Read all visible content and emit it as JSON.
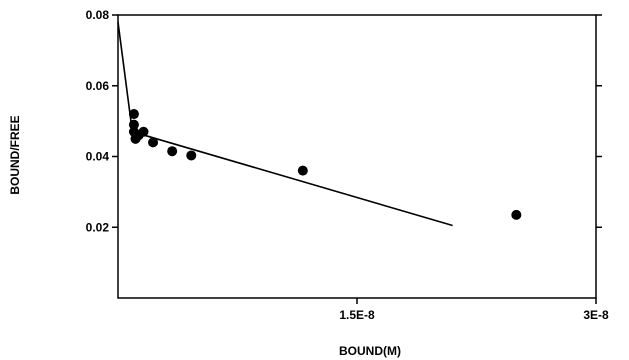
{
  "chart_data": {
    "type": "scatter",
    "title": "",
    "xlabel": "BOUND(M)",
    "ylabel": "BOUND/FREE",
    "xlim": [
      0,
      3e-08
    ],
    "ylim": [
      0,
      0.08
    ],
    "x_ticks": [
      {
        "value": 1.5e-08,
        "label": "1.5E-8"
      },
      {
        "value": 3e-08,
        "label": "3E-8"
      }
    ],
    "y_ticks": [
      {
        "value": 0.02,
        "label": "0.02"
      },
      {
        "value": 0.04,
        "label": "0.04"
      },
      {
        "value": 0.06,
        "label": "0.06"
      },
      {
        "value": 0.08,
        "label": "0.08"
      }
    ],
    "grid": false,
    "series": [
      {
        "kind": "points",
        "points": [
          {
            "x": 1e-09,
            "y": 0.052
          },
          {
            "x": 1e-09,
            "y": 0.049
          },
          {
            "x": 1e-09,
            "y": 0.047
          },
          {
            "x": 1.1e-09,
            "y": 0.045
          },
          {
            "x": 1.3e-09,
            "y": 0.046
          },
          {
            "x": 1.6e-09,
            "y": 0.047
          },
          {
            "x": 2.2e-09,
            "y": 0.044
          },
          {
            "x": 3.4e-09,
            "y": 0.0415
          },
          {
            "x": 4.6e-09,
            "y": 0.0403
          },
          {
            "x": 1.16e-08,
            "y": 0.036
          },
          {
            "x": 2.5e-08,
            "y": 0.0235
          }
        ]
      },
      {
        "kind": "fit-line",
        "points": [
          {
            "x": 0.0,
            "y": 0.078
          },
          {
            "x": 9e-10,
            "y": 0.047
          },
          {
            "x": 2.1e-08,
            "y": 0.0205
          }
        ]
      }
    ]
  }
}
